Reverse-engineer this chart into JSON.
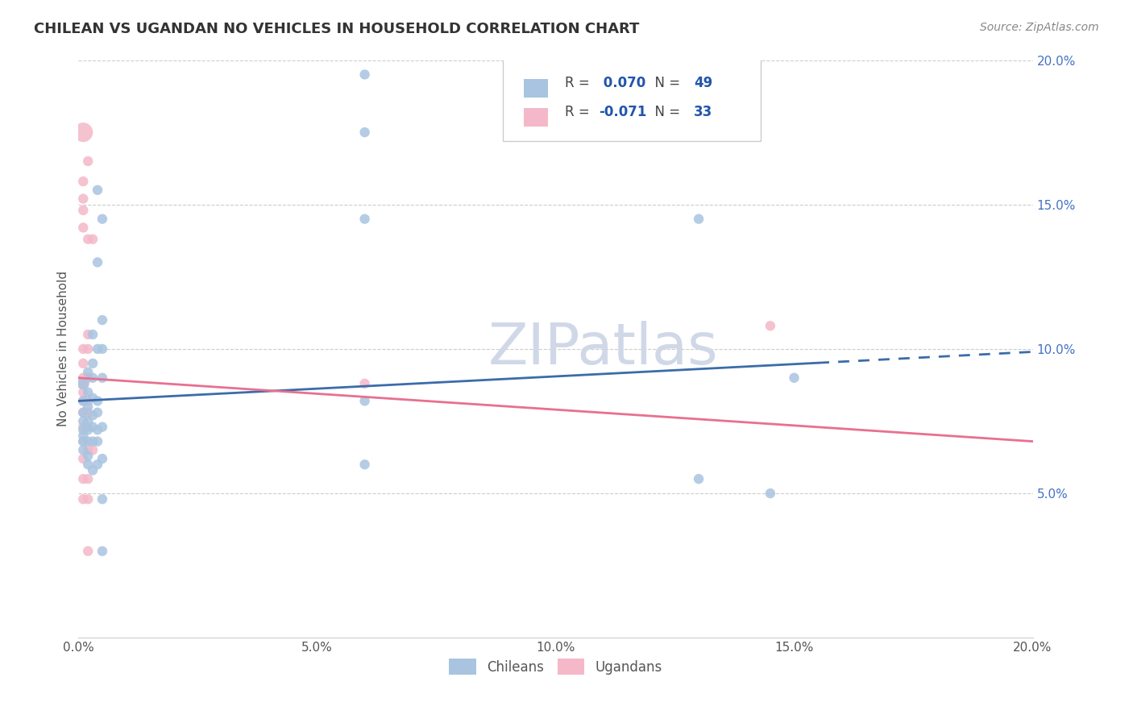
{
  "title": "CHILEAN VS UGANDAN NO VEHICLES IN HOUSEHOLD CORRELATION CHART",
  "source": "Source: ZipAtlas.com",
  "xlabel": "",
  "ylabel": "No Vehicles in Household",
  "xlim": [
    0.0,
    0.2
  ],
  "ylim": [
    0.0,
    0.2
  ],
  "xtick_labels": [
    "0.0%",
    "5.0%",
    "10.0%",
    "15.0%",
    "20.0%"
  ],
  "xtick_vals": [
    0.0,
    0.05,
    0.1,
    0.15,
    0.2
  ],
  "ytick_labels": [
    "5.0%",
    "10.0%",
    "15.0%",
    "20.0%"
  ],
  "ytick_vals": [
    0.05,
    0.1,
    0.15,
    0.2
  ],
  "right_ytick_labels": [
    "5.0%",
    "10.0%",
    "15.0%",
    "20.0%"
  ],
  "right_ytick_vals": [
    0.05,
    0.1,
    0.15,
    0.2
  ],
  "legend_entries": [
    {
      "label": "R =  0.070   N = 49",
      "color": "#a8c4e0"
    },
    {
      "label": "R = -0.071   N = 33",
      "color": "#f4b8c8"
    }
  ],
  "chilean_R": 0.07,
  "chilean_N": 49,
  "ugandan_R": -0.071,
  "ugandan_N": 33,
  "chilean_color": "#a8c4e0",
  "ugandan_color": "#f4b8c8",
  "chilean_line_color": "#3b6caa",
  "ugandan_line_color": "#e87090",
  "watermark": "ZIPatlas",
  "watermark_color": "#d0d8e8",
  "chilean_points": [
    [
      0.001,
      0.088
    ],
    [
      0.001,
      0.075
    ],
    [
      0.001,
      0.082
    ],
    [
      0.001,
      0.078
    ],
    [
      0.001,
      0.072
    ],
    [
      0.001,
      0.07
    ],
    [
      0.001,
      0.068
    ],
    [
      0.001,
      0.065
    ],
    [
      0.002,
      0.092
    ],
    [
      0.002,
      0.085
    ],
    [
      0.002,
      0.08
    ],
    [
      0.002,
      0.075
    ],
    [
      0.002,
      0.072
    ],
    [
      0.002,
      0.068
    ],
    [
      0.002,
      0.063
    ],
    [
      0.002,
      0.06
    ],
    [
      0.003,
      0.105
    ],
    [
      0.003,
      0.095
    ],
    [
      0.003,
      0.09
    ],
    [
      0.003,
      0.083
    ],
    [
      0.003,
      0.077
    ],
    [
      0.003,
      0.073
    ],
    [
      0.003,
      0.068
    ],
    [
      0.003,
      0.058
    ],
    [
      0.004,
      0.155
    ],
    [
      0.004,
      0.13
    ],
    [
      0.004,
      0.1
    ],
    [
      0.004,
      0.082
    ],
    [
      0.004,
      0.078
    ],
    [
      0.004,
      0.072
    ],
    [
      0.004,
      0.068
    ],
    [
      0.004,
      0.06
    ],
    [
      0.005,
      0.145
    ],
    [
      0.005,
      0.11
    ],
    [
      0.005,
      0.1
    ],
    [
      0.005,
      0.09
    ],
    [
      0.005,
      0.073
    ],
    [
      0.005,
      0.062
    ],
    [
      0.005,
      0.048
    ],
    [
      0.005,
      0.03
    ],
    [
      0.06,
      0.195
    ],
    [
      0.06,
      0.175
    ],
    [
      0.06,
      0.145
    ],
    [
      0.06,
      0.082
    ],
    [
      0.06,
      0.06
    ],
    [
      0.13,
      0.145
    ],
    [
      0.13,
      0.055
    ],
    [
      0.145,
      0.05
    ],
    [
      0.15,
      0.09
    ]
  ],
  "ugandan_points": [
    [
      0.001,
      0.175
    ],
    [
      0.001,
      0.158
    ],
    [
      0.001,
      0.152
    ],
    [
      0.001,
      0.148
    ],
    [
      0.001,
      0.142
    ],
    [
      0.001,
      0.1
    ],
    [
      0.001,
      0.095
    ],
    [
      0.001,
      0.09
    ],
    [
      0.001,
      0.088
    ],
    [
      0.001,
      0.085
    ],
    [
      0.001,
      0.082
    ],
    [
      0.001,
      0.078
    ],
    [
      0.001,
      0.073
    ],
    [
      0.001,
      0.068
    ],
    [
      0.001,
      0.062
    ],
    [
      0.001,
      0.055
    ],
    [
      0.001,
      0.048
    ],
    [
      0.002,
      0.165
    ],
    [
      0.002,
      0.138
    ],
    [
      0.002,
      0.105
    ],
    [
      0.002,
      0.1
    ],
    [
      0.002,
      0.09
    ],
    [
      0.002,
      0.082
    ],
    [
      0.002,
      0.078
    ],
    [
      0.002,
      0.073
    ],
    [
      0.002,
      0.065
    ],
    [
      0.002,
      0.055
    ],
    [
      0.002,
      0.048
    ],
    [
      0.002,
      0.03
    ],
    [
      0.003,
      0.138
    ],
    [
      0.003,
      0.065
    ],
    [
      0.06,
      0.088
    ],
    [
      0.145,
      0.108
    ]
  ],
  "chilean_size_default": 80,
  "ugandan_size_default": 80,
  "chilean_size_large": 500,
  "chilean_large_idx": 32
}
